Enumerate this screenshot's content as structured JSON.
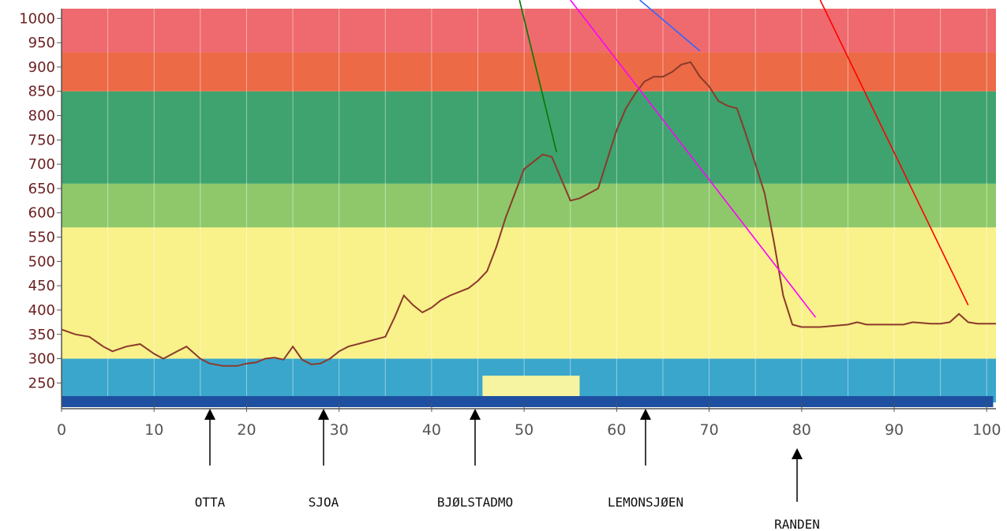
{
  "chart_data": {
    "type": "line",
    "xlim": [
      0,
      101
    ],
    "ylim": [
      210,
      1020
    ],
    "x_ticks": [
      0,
      10,
      20,
      30,
      40,
      50,
      60,
      70,
      80,
      90,
      100
    ],
    "y_ticks": [
      250,
      300,
      350,
      400,
      450,
      500,
      550,
      600,
      650,
      700,
      750,
      800,
      850,
      900,
      950,
      1000
    ],
    "bands": [
      {
        "from": 210,
        "to": 300,
        "color": "#3aa6cc"
      },
      {
        "from": 300,
        "to": 570,
        "color": "#f9f18a"
      },
      {
        "from": 570,
        "to": 660,
        "color": "#8ec86a"
      },
      {
        "from": 660,
        "to": 850,
        "color": "#3ea36e"
      },
      {
        "from": 850,
        "to": 930,
        "color": "#ec6a46"
      },
      {
        "from": 930,
        "to": 1020,
        "color": "#ee6a6e"
      }
    ],
    "line_color": "#8b3a2b",
    "series": [
      {
        "x": [
          0,
          1.5,
          3,
          4.5,
          5.5,
          7,
          8.5,
          10,
          11,
          12.5,
          13.5,
          15,
          16,
          17.5,
          19,
          20,
          21,
          22,
          23,
          24,
          25,
          26,
          27,
          28,
          29,
          30,
          31,
          33,
          35,
          36,
          37,
          38,
          39,
          40,
          41,
          42,
          44,
          45,
          46,
          47,
          48,
          49,
          50,
          51,
          52,
          53,
          54,
          55,
          56,
          57,
          58,
          59,
          60,
          61,
          62,
          63,
          64,
          65,
          66,
          67,
          68,
          69,
          70,
          71,
          72,
          73,
          74,
          75,
          76,
          77,
          78,
          79,
          80,
          82,
          85,
          86,
          87,
          89,
          91,
          92,
          94,
          95,
          96,
          97,
          98,
          99,
          101
        ],
        "y": [
          360,
          350,
          345,
          325,
          315,
          325,
          330,
          310,
          300,
          315,
          325,
          300,
          290,
          285,
          285,
          290,
          292,
          300,
          302,
          298,
          325,
          298,
          288,
          290,
          300,
          315,
          325,
          335,
          345,
          385,
          430,
          410,
          395,
          405,
          420,
          430,
          445,
          460,
          480,
          530,
          590,
          640,
          690,
          705,
          720,
          715,
          670,
          625,
          630,
          640,
          650,
          710,
          770,
          815,
          845,
          870,
          880,
          880,
          890,
          905,
          910,
          880,
          860,
          830,
          820,
          815,
          760,
          700,
          640,
          540,
          430,
          370,
          365,
          365,
          370,
          375,
          370,
          370,
          370,
          375,
          372,
          372,
          375,
          392,
          375,
          372,
          372
        ]
      }
    ],
    "places": [
      {
        "label": "OTTA",
        "x": 16.5
      },
      {
        "label": "SJOA",
        "x": 29
      },
      {
        "label": "BJØLSTADMO",
        "x": 46
      },
      {
        "label": "LEMONSJØEN",
        "x": 65.5
      },
      {
        "label": "RANDEN",
        "x": 82.5
      }
    ],
    "pointers": [
      {
        "color": "#007a00",
        "from": [
          49.5,
          1090
        ],
        "to": [
          53.5,
          725
        ]
      },
      {
        "color": "#ff00ff",
        "from": [
          55,
          1090
        ],
        "to": [
          81.5,
          385
        ]
      },
      {
        "color": "#3366ff",
        "from": [
          62.5,
          1090
        ],
        "to": [
          69,
          933
        ]
      },
      {
        "color": "#ff0000",
        "from": [
          82,
          1090
        ],
        "to": [
          98,
          410
        ]
      }
    ],
    "bottom_bar_color": "#1e4fa0",
    "road_patch_color": "#f6f4a0"
  }
}
